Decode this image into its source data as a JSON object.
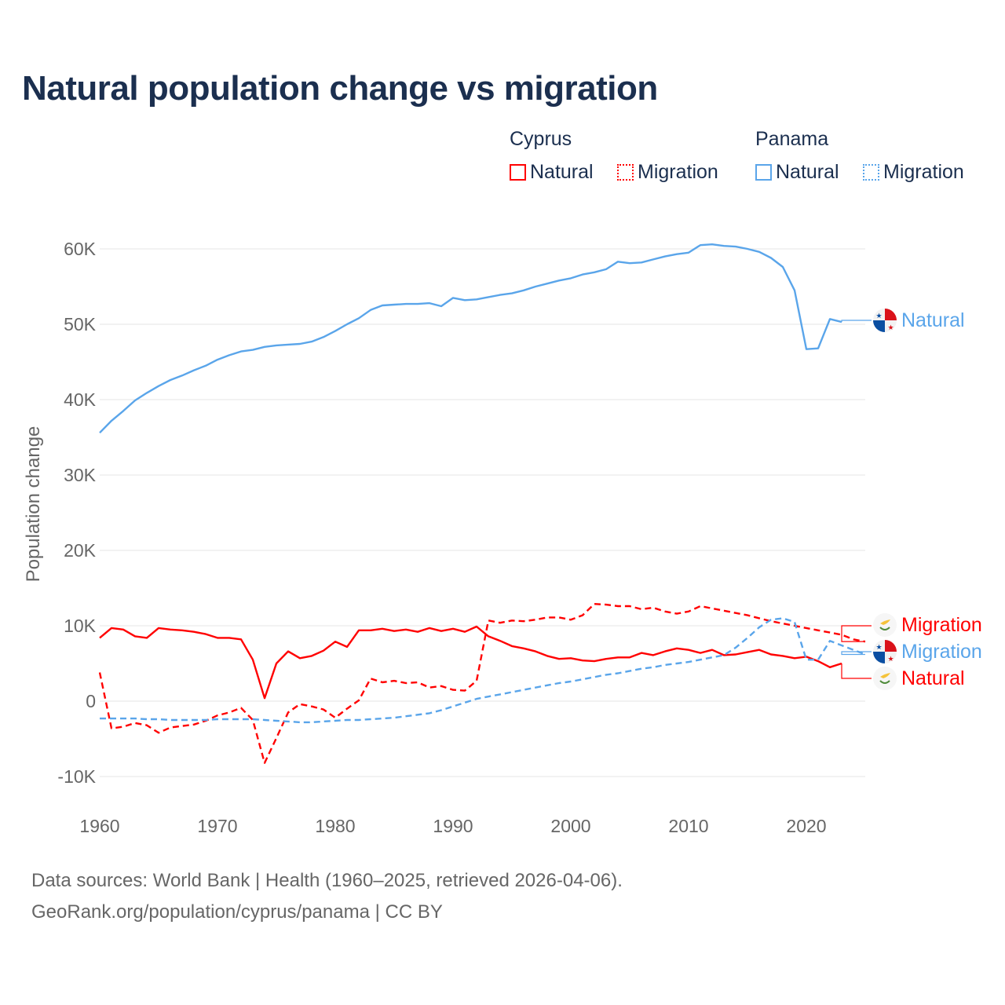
{
  "title": "Natural population change vs migration",
  "legend": {
    "groups": [
      {
        "name": "Cyprus",
        "items": [
          "Natural",
          "Migration"
        ]
      },
      {
        "name": "Panama",
        "items": [
          "Natural",
          "Migration"
        ]
      }
    ]
  },
  "footer": {
    "line1": "Data sources: World Bank | Health (1960–2025, retrieved 2026-04-06).",
    "line2": "GeoRank.org/population/cyprus/panama | CC BY"
  },
  "colors": {
    "cyprus": "#ff0000",
    "panama": "#5aa5ea",
    "grid": "#e6e6e6",
    "axis_text": "#666666"
  },
  "end_labels": {
    "panama_natural": "Natural",
    "cyprus_migration": "Migration",
    "panama_migration": "Migration",
    "cyprus_natural": "Natural"
  },
  "chart_data": {
    "type": "line",
    "title": "Natural population change vs migration",
    "xlabel": "",
    "ylabel": "Population change",
    "xlim": [
      1960,
      2025
    ],
    "ylim": [
      -10000,
      60000
    ],
    "x_ticks": [
      1960,
      1970,
      1980,
      1990,
      2000,
      2010,
      2020
    ],
    "y_ticks": [
      -10000,
      0,
      10000,
      20000,
      30000,
      40000,
      50000,
      60000
    ],
    "y_tick_labels": [
      "-10K",
      "0",
      "10K",
      "20K",
      "30K",
      "40K",
      "50K",
      "60K"
    ],
    "grid": true,
    "legend_position": "top-right",
    "series": [
      {
        "name": "Panama Natural",
        "country": "Panama",
        "kind": "Natural",
        "dash": "solid",
        "start": 1960,
        "values": [
          35600,
          37200,
          38500,
          39900,
          40900,
          41800,
          42600,
          43200,
          43900,
          44500,
          45300,
          45900,
          46400,
          46600,
          47000,
          47200,
          47300,
          47400,
          47700,
          48300,
          49100,
          50000,
          50800,
          51900,
          52500,
          52600,
          52700,
          52700,
          52800,
          52400,
          53500,
          53200,
          53300,
          53600,
          53900,
          54100,
          54500,
          55000,
          55400,
          55800,
          56100,
          56600,
          56900,
          57300,
          58300,
          58100,
          58200,
          58600,
          59000,
          59300,
          59500,
          60500,
          60600,
          60400,
          60300,
          60000,
          59600,
          58800,
          57600,
          54500,
          46700,
          46800,
          50700,
          50300
        ]
      },
      {
        "name": "Cyprus Natural",
        "country": "Cyprus",
        "kind": "Natural",
        "dash": "solid",
        "start": 1960,
        "values": [
          8400,
          9700,
          9500,
          8600,
          8400,
          9700,
          9500,
          9400,
          9200,
          8900,
          8400,
          8400,
          8200,
          5500,
          400,
          5000,
          6600,
          5700,
          6000,
          6700,
          7900,
          7200,
          9400,
          9400,
          9600,
          9300,
          9500,
          9200,
          9700,
          9300,
          9600,
          9200,
          9900,
          8600,
          8000,
          7300,
          7000,
          6600,
          6000,
          5600,
          5700,
          5400,
          5300,
          5600,
          5800,
          5800,
          6400,
          6100,
          6600,
          7000,
          6800,
          6400,
          6800,
          6100,
          6200,
          6500,
          6800,
          6200,
          6000,
          5700,
          5900,
          5300,
          4500,
          5000
        ]
      },
      {
        "name": "Cyprus Migration",
        "country": "Cyprus",
        "kind": "Migration",
        "dash": "dashed",
        "start": 1960,
        "values": [
          3800,
          -3600,
          -3400,
          -2900,
          -3200,
          -4200,
          -3500,
          -3300,
          -3100,
          -2600,
          -1900,
          -1500,
          -900,
          -2500,
          -8200,
          -4900,
          -1500,
          -400,
          -700,
          -1100,
          -2200,
          -1000,
          100,
          3000,
          2500,
          2700,
          2400,
          2500,
          1800,
          2000,
          1500,
          1400,
          2700,
          10700,
          10400,
          10700,
          10600,
          10800,
          11100,
          11100,
          10800,
          11400,
          12900,
          12800,
          12600,
          12600,
          12200,
          12400,
          11900,
          11600,
          11900,
          12600,
          12300,
          12000,
          11700,
          11400,
          11000,
          10600,
          10300,
          10000,
          9700,
          9400,
          9100,
          8800,
          8200,
          7900
        ]
      },
      {
        "name": "Panama Migration",
        "country": "Panama",
        "kind": "Migration",
        "dash": "dashed",
        "start": 1960,
        "values": [
          -2300,
          -2300,
          -2300,
          -2300,
          -2400,
          -2400,
          -2500,
          -2500,
          -2500,
          -2500,
          -2400,
          -2400,
          -2400,
          -2400,
          -2500,
          -2600,
          -2700,
          -2800,
          -2800,
          -2700,
          -2600,
          -2500,
          -2500,
          -2400,
          -2300,
          -2200,
          -2000,
          -1800,
          -1600,
          -1200,
          -700,
          -200,
          300,
          600,
          900,
          1200,
          1500,
          1800,
          2100,
          2400,
          2600,
          2900,
          3200,
          3500,
          3700,
          4000,
          4300,
          4500,
          4800,
          5000,
          5200,
          5500,
          5800,
          6100,
          7100,
          8400,
          9800,
          10800,
          11000,
          10500,
          5500,
          5500,
          8000,
          7400,
          6800,
          6200
        ]
      }
    ]
  }
}
